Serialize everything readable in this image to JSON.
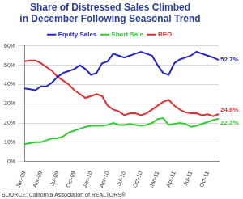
{
  "chart_data": {
    "type": "line",
    "title": "Share of Distressed Sales Climbed in December Following Seasonal Trend",
    "source": "SOURCE: California Association of REALTORS®",
    "categories": [
      "Jan-09",
      null,
      null,
      "Apr-09",
      null,
      null,
      "Jul-09",
      null,
      null,
      "Oct-09",
      null,
      null,
      "Jan-10",
      null,
      null,
      "Apr-10",
      null,
      null,
      "Jul-10",
      null,
      null,
      "Oct-10",
      null,
      null,
      "Jan-11",
      null,
      null,
      "Apr-11",
      null,
      null,
      "Jul-11",
      null,
      null,
      "Oct-11",
      null,
      null
    ],
    "series": [
      {
        "name": "Equity Sales",
        "color": "#2424cc",
        "values": [
          38,
          37.5,
          37,
          39,
          39,
          41,
          44,
          46,
          47,
          48,
          50,
          48,
          45,
          46,
          51,
          52,
          56,
          55,
          54,
          55,
          56,
          57,
          56,
          55,
          50,
          46,
          45,
          51,
          53,
          54,
          55,
          57,
          56,
          55,
          54,
          52.7
        ]
      },
      {
        "name": "Short Sale",
        "color": "#33cc33",
        "values": [
          9,
          9.5,
          10,
          10,
          11,
          12,
          12,
          13,
          15,
          16,
          17,
          18,
          18.5,
          18.5,
          18.5,
          19,
          20,
          19,
          19,
          19.5,
          19,
          18.5,
          19,
          20,
          22,
          22.5,
          19,
          19.5,
          20,
          19.5,
          18,
          18.5,
          19.5,
          20.5,
          21.5,
          22.2
        ]
      },
      {
        "name": "REO",
        "color": "#e03030",
        "values": [
          52,
          52.5,
          52.5,
          51,
          49,
          47,
          44,
          42,
          40,
          37,
          35,
          33,
          34,
          35,
          34,
          29,
          27,
          26,
          24,
          25,
          25,
          24,
          25,
          27,
          29,
          31,
          32,
          29,
          27,
          25.5,
          25,
          25,
          24,
          24.5,
          23.5,
          24.6
        ]
      }
    ],
    "annotations": [
      {
        "text": "52.7%",
        "series": "Equity Sales",
        "value": 52.7
      },
      {
        "text": "24.6%",
        "series": "REO",
        "value": 24.6
      },
      {
        "text": "22.2%",
        "series": "Short Sale",
        "value": 22.2
      }
    ],
    "ylim": [
      0,
      60
    ],
    "yticks": [
      {
        "value": 0,
        "label": "0%"
      },
      {
        "value": 10,
        "label": "10%"
      },
      {
        "value": 20,
        "label": "20%"
      },
      {
        "value": 30,
        "label": "30%"
      },
      {
        "value": 40,
        "label": "40%"
      },
      {
        "value": 50,
        "label": "50%"
      },
      {
        "value": 60,
        "label": "60%"
      }
    ],
    "grid": true,
    "legend": "top"
  }
}
